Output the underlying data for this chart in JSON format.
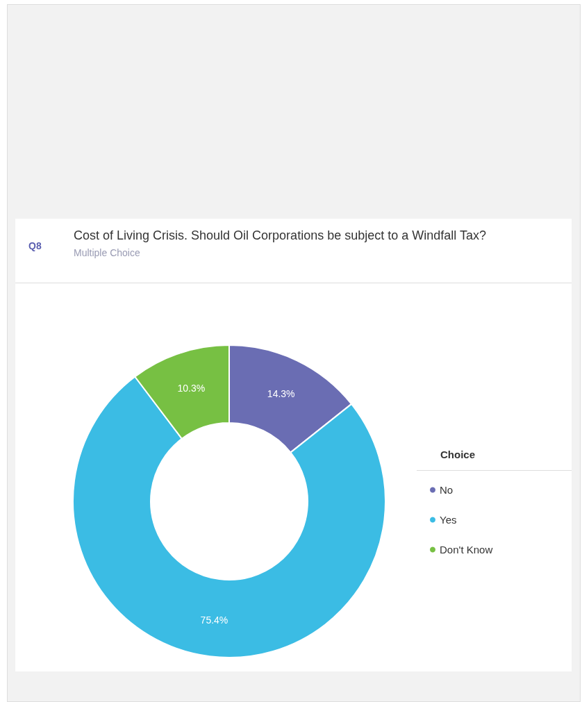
{
  "chart_data": {
    "type": "donut",
    "title": "Cost of Living Crisis. Should Oil Corporations be subject to a Windfall Tax?",
    "subtitle": "Multiple Choice",
    "annotations": [
      "Q8"
    ],
    "categories": [
      "No",
      "Yes",
      "Don't Know"
    ],
    "values": [
      14.3,
      75.4,
      10.3
    ],
    "colors": [
      "#6a6db3",
      "#3bbce4",
      "#77c043"
    ],
    "value_labels": [
      "14.3%",
      "75.4%",
      "10.3%"
    ],
    "legend_title": "Choice",
    "legend": "right"
  }
}
